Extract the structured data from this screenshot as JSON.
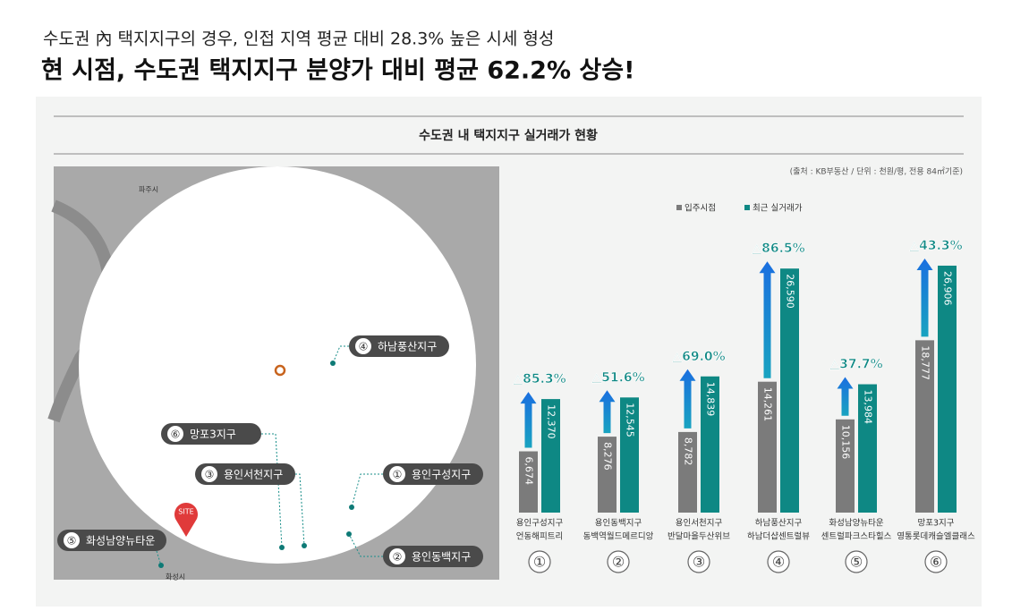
{
  "header": {
    "subtitle": "수도권 內 택지지구의 경우, 인접 지역 평균 대비 28.3% 높은 시세 형성",
    "title": "현 시점, 수도권 택지지구 분양가 대비 평균 62.2% 상승!"
  },
  "map": {
    "places": [
      "파주시",
      "화성시"
    ],
    "site": "SITE",
    "markers": [
      {
        "num": "④",
        "label": "하남풍산지구"
      },
      {
        "num": "⑥",
        "label": "망포3지구"
      },
      {
        "num": "③",
        "label": "용인서천지구"
      },
      {
        "num": "①",
        "label": "용인구성지구"
      },
      {
        "num": "⑤",
        "label": "화성남양뉴타운"
      },
      {
        "num": "②",
        "label": "용인동백지구"
      }
    ]
  },
  "chart_data": {
    "type": "bar",
    "title": "수도권 내 택지지구 실거래가 현황",
    "source": "(출처 : KB부동산 / 단위 : 천원/평, 전용 84㎡기준)",
    "categories": [
      "용인구성지구",
      "용인동백지구",
      "용인서천지구",
      "하남풍산지구",
      "화성남양뉴타운",
      "망포3지구"
    ],
    "subcategories": [
      "언동해피트리",
      "동백역월드메르디앙",
      "반달마을두산위브",
      "하남더샵센트럴뷰",
      "센트럴파크스타힐스",
      "영통롯데캐슬엘클래스"
    ],
    "category_numbers": [
      "①",
      "②",
      "③",
      "④",
      "⑤",
      "⑥"
    ],
    "series": [
      {
        "name": "입주시점",
        "color": "#7b7b7b",
        "values": [
          6674,
          8276,
          8782,
          14261,
          10156,
          18777
        ],
        "value_labels": [
          "6,674",
          "8,276",
          "8,782",
          "14,261",
          "10,156",
          "18,777"
        ]
      },
      {
        "name": "최근 실거래가",
        "color": "#0e8884",
        "values": [
          12370,
          12545,
          14839,
          26590,
          13984,
          26906
        ],
        "value_labels": [
          "12,370",
          "12,545",
          "14,839",
          "26,590",
          "13,984",
          "26,906"
        ]
      }
    ],
    "growth": {
      "values": [
        85.3,
        51.6,
        69.0,
        86.5,
        37.7,
        43.3
      ],
      "value_labels": [
        "△85.3%",
        "△51.6%",
        "△69.0%",
        "△86.5%",
        "△37.7%",
        "△43.3%"
      ]
    },
    "ylim": [
      0,
      27000
    ]
  }
}
